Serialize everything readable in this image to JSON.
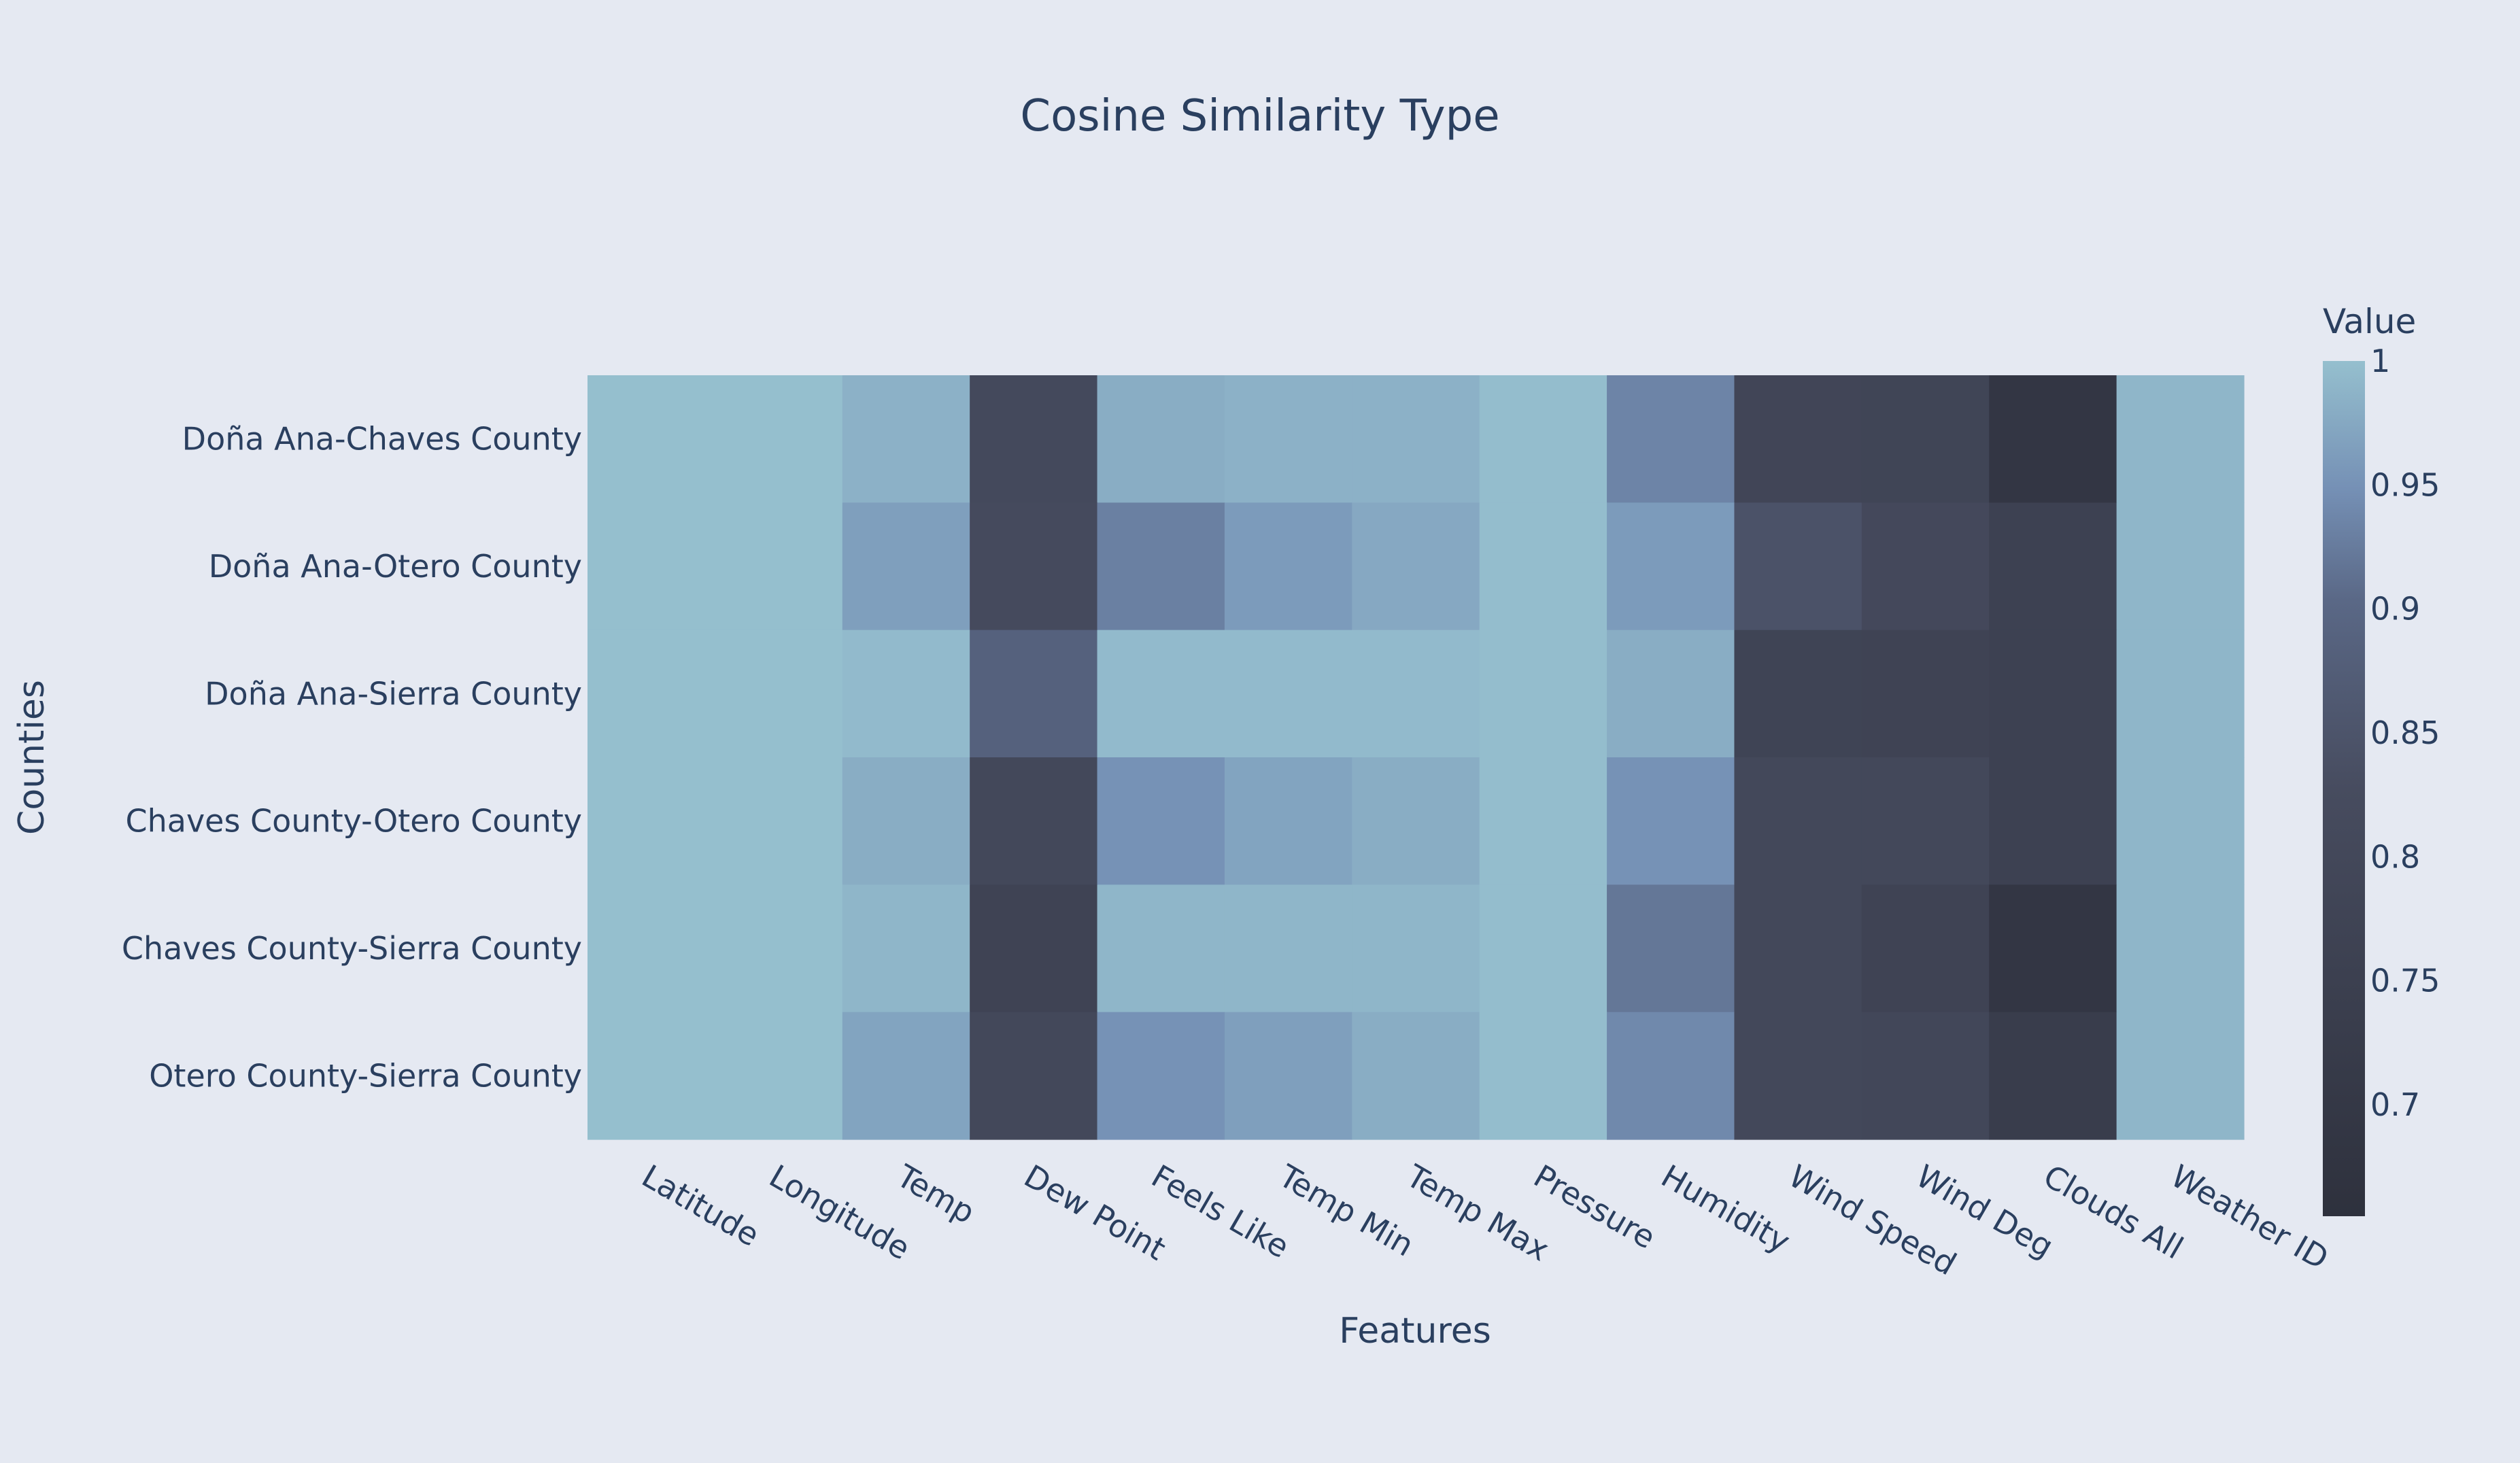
{
  "chart_data": {
    "type": "heatmap",
    "title": "Cosine Similarity Type",
    "xlabel": "Features",
    "ylabel": "Counties",
    "x_categories": [
      "Latitude",
      "Longitude",
      "Temp",
      "Dew Point",
      "Feels Like",
      "Temp Min",
      "Temp Max",
      "Pressure",
      "Humidity",
      "Wind Speed",
      "Wind Deg",
      "Clouds All",
      "Weather ID"
    ],
    "y_categories": [
      "Doña Ana-Chaves County",
      "Doña Ana-Otero County",
      "Doña Ana-Sierra County",
      "Chaves County-Otero County",
      "Chaves County-Sierra County",
      "Otero County-Sierra County"
    ],
    "values": [
      [
        1.0,
        1.0,
        0.985,
        0.81,
        0.98,
        0.985,
        0.985,
        0.998,
        0.935,
        0.785,
        0.78,
        0.69,
        0.99
      ],
      [
        1.0,
        1.0,
        0.965,
        0.815,
        0.93,
        0.96,
        0.975,
        0.998,
        0.96,
        0.845,
        0.805,
        0.76,
        0.99
      ],
      [
        1.0,
        1.0,
        0.995,
        0.885,
        0.995,
        0.995,
        0.995,
        0.998,
        0.98,
        0.775,
        0.77,
        0.76,
        0.99
      ],
      [
        1.0,
        1.0,
        0.98,
        0.8,
        0.95,
        0.97,
        0.98,
        0.998,
        0.95,
        0.8,
        0.8,
        0.76,
        0.99
      ],
      [
        1.0,
        1.0,
        0.99,
        0.77,
        0.99,
        0.99,
        0.99,
        0.998,
        0.92,
        0.8,
        0.77,
        0.69,
        0.99
      ],
      [
        1.0,
        1.0,
        0.97,
        0.8,
        0.95,
        0.965,
        0.98,
        0.998,
        0.94,
        0.8,
        0.795,
        0.73,
        0.99
      ]
    ],
    "colorbar": {
      "title": "Value",
      "range": [
        0.655,
        1.0
      ],
      "ticks": [
        1,
        0.95,
        0.9,
        0.85,
        0.8,
        0.75,
        0.7
      ],
      "tick_labels": [
        "1",
        "0.95",
        "0.9",
        "0.85",
        "0.8",
        "0.75",
        "0.7"
      ],
      "colorscale": [
        [
          0.0,
          "#2e313d"
        ],
        [
          0.5,
          "#474c5f"
        ],
        [
          0.72,
          "#5a6886"
        ],
        [
          0.85,
          "#7590b5"
        ],
        [
          1.0,
          "#95bfce"
        ]
      ]
    },
    "background_color": "#e5e9f2",
    "text_color": "#2a3f5f",
    "grid": false,
    "legend": "right"
  }
}
